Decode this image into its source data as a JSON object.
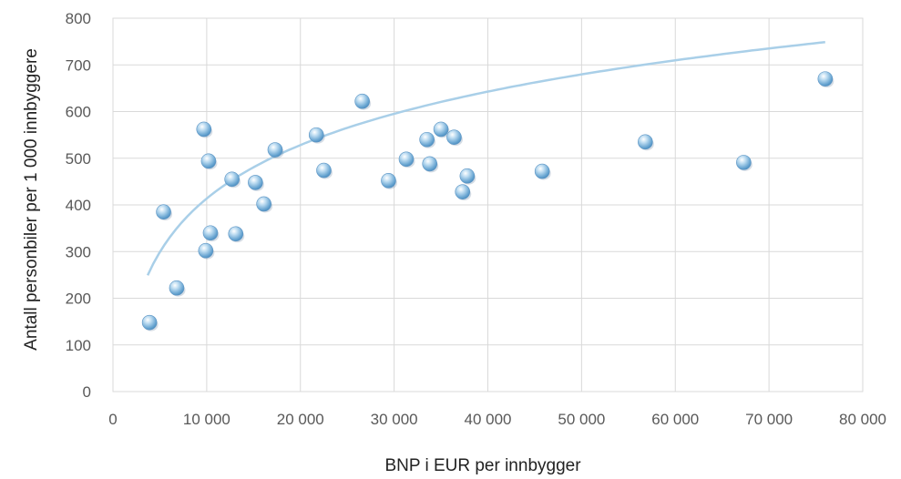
{
  "chart_data": {
    "type": "scatter",
    "title": "",
    "xlabel": "BNP i EUR per innbygger",
    "ylabel": "Antall personbiler per 1 000 innbyggere",
    "xlim": [
      0,
      80000
    ],
    "ylim": [
      0,
      800
    ],
    "x_ticks": [
      0,
      10000,
      20000,
      30000,
      40000,
      50000,
      60000,
      70000,
      80000
    ],
    "x_tick_labels": [
      "0",
      "10 000",
      "20 000",
      "30 000",
      "40 000",
      "50 000",
      "60 000",
      "70 000",
      "80 000"
    ],
    "y_ticks": [
      0,
      100,
      200,
      300,
      400,
      500,
      600,
      700,
      800
    ],
    "y_tick_labels": [
      "0",
      "100",
      "200",
      "300",
      "400",
      "500",
      "600",
      "700",
      "800"
    ],
    "grid": true,
    "legend": "none",
    "colors": {
      "marker": "#7fb4da",
      "trendline": "#a9cfe8",
      "grid": "#d9d9d9"
    },
    "points": [
      {
        "x": 3900,
        "y": 148
      },
      {
        "x": 5400,
        "y": 385
      },
      {
        "x": 6800,
        "y": 222
      },
      {
        "x": 9700,
        "y": 562
      },
      {
        "x": 9900,
        "y": 302
      },
      {
        "x": 10200,
        "y": 494
      },
      {
        "x": 10400,
        "y": 340
      },
      {
        "x": 12700,
        "y": 455
      },
      {
        "x": 13100,
        "y": 338
      },
      {
        "x": 15200,
        "y": 448
      },
      {
        "x": 16100,
        "y": 402
      },
      {
        "x": 17300,
        "y": 518
      },
      {
        "x": 21700,
        "y": 550
      },
      {
        "x": 22500,
        "y": 474
      },
      {
        "x": 26600,
        "y": 622
      },
      {
        "x": 29400,
        "y": 452
      },
      {
        "x": 31300,
        "y": 498
      },
      {
        "x": 33500,
        "y": 540
      },
      {
        "x": 33800,
        "y": 488
      },
      {
        "x": 35000,
        "y": 562
      },
      {
        "x": 36400,
        "y": 545
      },
      {
        "x": 37300,
        "y": 428
      },
      {
        "x": 37800,
        "y": 462
      },
      {
        "x": 45800,
        "y": 472
      },
      {
        "x": 56800,
        "y": 535
      },
      {
        "x": 67300,
        "y": 491
      },
      {
        "x": 76000,
        "y": 670
      }
    ],
    "trendline": {
      "type": "logarithmic",
      "a": 165.3,
      "b": -1108.9,
      "x_range": [
        3700,
        76000
      ]
    }
  }
}
